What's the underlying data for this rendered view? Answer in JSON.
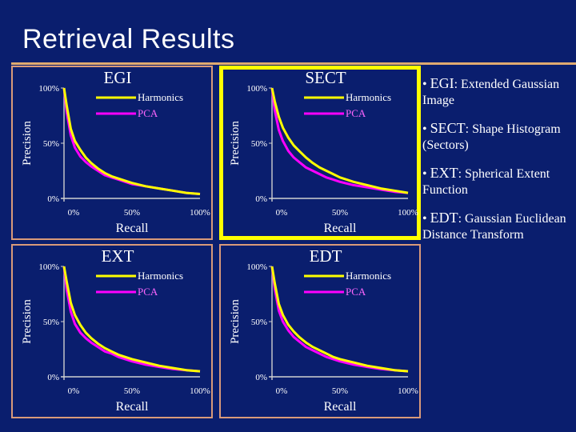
{
  "page": {
    "title": "Retrieval Results",
    "background": "#0a1e6e",
    "accent": "#e0aa70",
    "highlight": "#ffff00"
  },
  "chart_data": [
    {
      "type": "line",
      "title": "EGI",
      "xlabel": "Recall",
      "ylabel": "Precision",
      "xlim": [
        0,
        100
      ],
      "ylim": [
        0,
        100
      ],
      "x_ticks": [
        "0%",
        "50%",
        "100%"
      ],
      "y_ticks": [
        "0%",
        "50%",
        "100%"
      ],
      "highlighted": false,
      "series": [
        {
          "name": "Harmonics",
          "color": "#ffff00",
          "x": [
            0,
            2,
            5,
            8,
            12,
            16,
            20,
            25,
            30,
            35,
            40,
            45,
            50,
            60,
            70,
            80,
            90,
            100
          ],
          "y": [
            100,
            84,
            63,
            52,
            44,
            37,
            32,
            27,
            23,
            20,
            18,
            16,
            14,
            11,
            9,
            7,
            5,
            4
          ]
        },
        {
          "name": "PCA",
          "color": "#ff00ff",
          "x": [
            0,
            2,
            5,
            8,
            12,
            16,
            20,
            25,
            30,
            35,
            40,
            45,
            50,
            60,
            70,
            80,
            90,
            100
          ],
          "y": [
            100,
            78,
            57,
            46,
            38,
            33,
            29,
            25,
            21,
            19,
            17,
            15,
            13,
            11,
            9,
            7,
            5,
            4
          ]
        }
      ]
    },
    {
      "type": "line",
      "title": "SECT",
      "xlabel": "Recall",
      "ylabel": "Precision",
      "xlim": [
        0,
        100
      ],
      "ylim": [
        0,
        100
      ],
      "x_ticks": [
        "0%",
        "50%",
        "100%"
      ],
      "y_ticks": [
        "0%",
        "50%",
        "100%"
      ],
      "highlighted": true,
      "series": [
        {
          "name": "Harmonics",
          "color": "#ffff00",
          "x": [
            0,
            2,
            5,
            8,
            12,
            16,
            20,
            25,
            30,
            35,
            40,
            45,
            50,
            60,
            70,
            80,
            90,
            100
          ],
          "y": [
            100,
            88,
            74,
            64,
            55,
            48,
            43,
            37,
            32,
            28,
            25,
            22,
            19,
            15,
            12,
            9,
            7,
            5
          ]
        },
        {
          "name": "PCA",
          "color": "#ff00ff",
          "x": [
            0,
            2,
            5,
            8,
            12,
            16,
            20,
            25,
            30,
            35,
            40,
            45,
            50,
            60,
            70,
            80,
            90,
            100
          ],
          "y": [
            100,
            80,
            62,
            52,
            43,
            37,
            33,
            28,
            25,
            22,
            19,
            17,
            15,
            12,
            10,
            8,
            6,
            5
          ]
        }
      ]
    },
    {
      "type": "line",
      "title": "EXT",
      "xlabel": "Recall",
      "ylabel": "Precision",
      "xlim": [
        0,
        100
      ],
      "ylim": [
        0,
        100
      ],
      "x_ticks": [
        "0%",
        "50%",
        "100%"
      ],
      "y_ticks": [
        "0%",
        "50%",
        "100%"
      ],
      "highlighted": false,
      "series": [
        {
          "name": "Harmonics",
          "color": "#ffff00",
          "x": [
            0,
            2,
            5,
            8,
            12,
            16,
            20,
            25,
            30,
            35,
            40,
            45,
            50,
            60,
            70,
            80,
            90,
            100
          ],
          "y": [
            100,
            86,
            67,
            56,
            47,
            40,
            35,
            30,
            26,
            23,
            20,
            18,
            16,
            13,
            10,
            8,
            6,
            5
          ]
        },
        {
          "name": "PCA",
          "color": "#ff00ff",
          "x": [
            0,
            2,
            5,
            8,
            12,
            16,
            20,
            25,
            30,
            35,
            40,
            45,
            50,
            60,
            70,
            80,
            90,
            100
          ],
          "y": [
            100,
            79,
            59,
            48,
            40,
            35,
            31,
            27,
            23,
            21,
            18,
            16,
            14,
            11,
            9,
            7,
            6,
            5
          ]
        }
      ]
    },
    {
      "type": "line",
      "title": "EDT",
      "xlabel": "Recall",
      "ylabel": "Precision",
      "xlim": [
        0,
        100
      ],
      "ylim": [
        0,
        100
      ],
      "x_ticks": [
        "0%",
        "50%",
        "100%"
      ],
      "y_ticks": [
        "0%",
        "50%",
        "100%"
      ],
      "highlighted": false,
      "series": [
        {
          "name": "Harmonics",
          "color": "#ffff00",
          "x": [
            0,
            2,
            5,
            8,
            12,
            16,
            20,
            25,
            30,
            35,
            40,
            45,
            50,
            60,
            70,
            80,
            90,
            100
          ],
          "y": [
            100,
            85,
            66,
            56,
            47,
            41,
            36,
            31,
            27,
            24,
            21,
            18,
            16,
            13,
            10,
            8,
            6,
            5
          ]
        },
        {
          "name": "PCA",
          "color": "#ff00ff",
          "x": [
            0,
            2,
            5,
            8,
            12,
            16,
            20,
            25,
            30,
            35,
            40,
            45,
            50,
            60,
            70,
            80,
            90,
            100
          ],
          "y": [
            100,
            80,
            60,
            50,
            42,
            36,
            32,
            27,
            24,
            21,
            18,
            16,
            14,
            11,
            9,
            7,
            6,
            5
          ]
        }
      ]
    }
  ],
  "notes": [
    {
      "term": "EGI",
      "definition": ": Extended Gaussian Image"
    },
    {
      "term": "SECT",
      "definition": ": Shape Histogram (Sectors)"
    },
    {
      "term": "EXT",
      "definition": ": Spherical Extent Function"
    },
    {
      "term": "EDT",
      "definition": ": Gaussian Euclidean Distance Transform"
    }
  ]
}
